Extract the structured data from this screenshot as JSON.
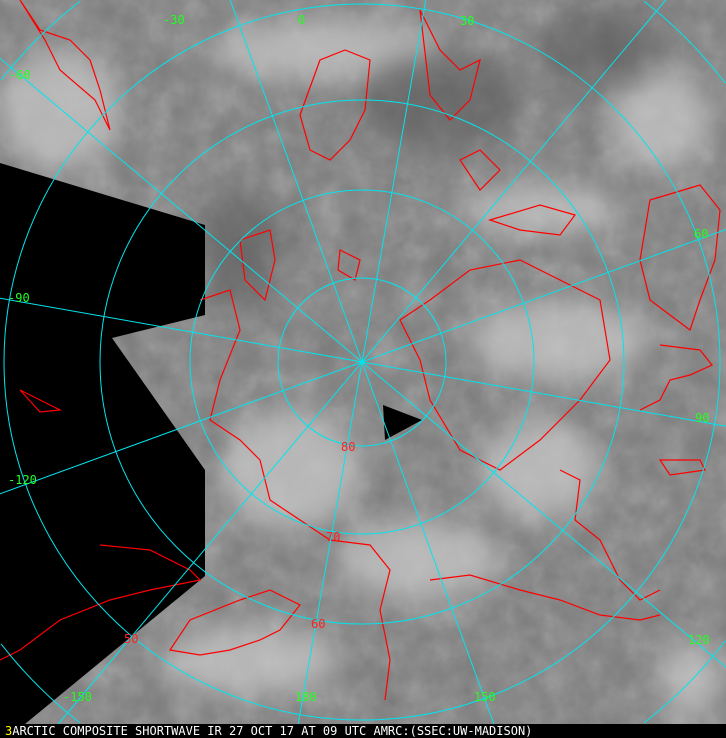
{
  "caption": {
    "frame_number": "3",
    "text": "ARCTIC COMPOSITE SHORTWAVE IR 27 OCT 17 AT 09 UTC AMRC:(SSEC:UW-MADISON)"
  },
  "grid": {
    "latitude_labels": [
      "80",
      "70",
      "60",
      "50"
    ],
    "longitude_labels": {
      "m30": "-30",
      "0": "0",
      "30": "30",
      "m60": "-60",
      "m90": "-90",
      "60": "60",
      "90": "90",
      "120": "120",
      "150": "150",
      "180": "180",
      "m150": "-150",
      "m120": "-120"
    }
  },
  "colors": {
    "grid": "#00e5ee",
    "coastline": "#ff0000",
    "longitude_label": "#22ff22",
    "latitude_label": "#ff2020",
    "no_data": "#000000",
    "caption_number": "#ffff00"
  }
}
